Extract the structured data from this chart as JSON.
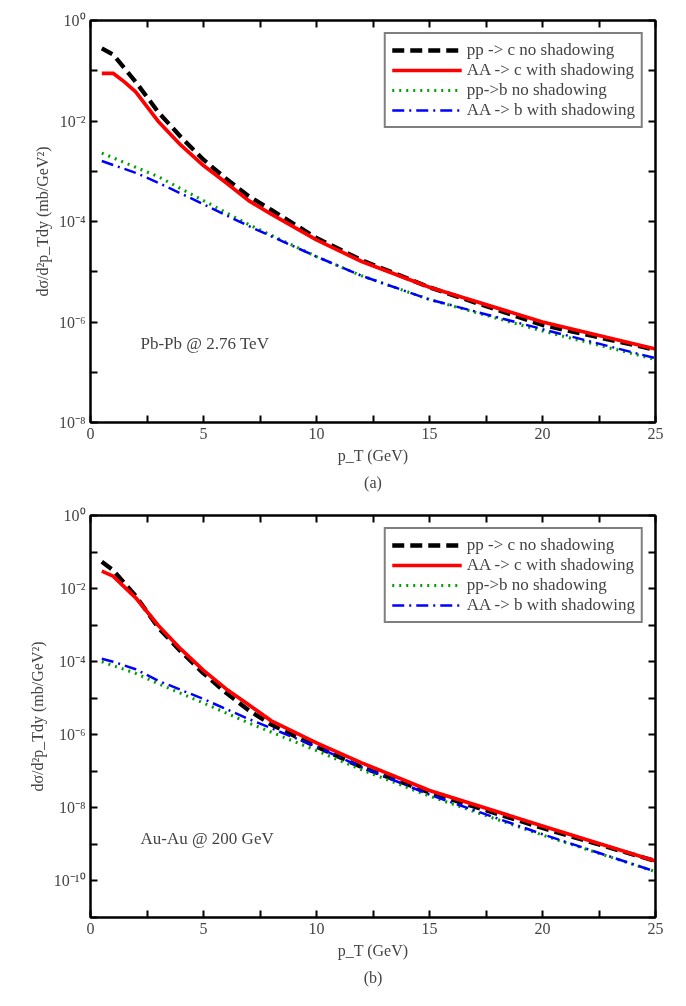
{
  "chart_data": [
    {
      "type": "line",
      "xlabel": "p_T (GeV)",
      "ylabel": "dσ/d²p_Tdy (mb/GeV²)",
      "log": "y",
      "legend": "top right",
      "grid": false,
      "annotations": [
        "Pb-Pb @ 2.76 TeV",
        "(a)"
      ],
      "xlim": [
        0,
        25
      ],
      "xticks": [
        0,
        {
          "value": 2.5,
          "label": null
        },
        5,
        {
          "value": 7.5,
          "label": null
        },
        10,
        {
          "value": 12.5,
          "label": null
        },
        15,
        {
          "value": 17.5,
          "label": null
        },
        20,
        {
          "value": 22.5,
          "label": null
        },
        25
      ],
      "ylim": [
        1e-08,
        1
      ],
      "yticks": [
        {
          "value": 1e-08,
          "label": "10⁻⁸"
        },
        {
          "value": 1e-07,
          "label": null
        },
        {
          "value": 1e-06,
          "label": "10⁻⁶"
        },
        {
          "value": 1e-05,
          "label": null
        },
        {
          "value": 0.0001,
          "label": "10⁻⁴"
        },
        {
          "value": 0.001,
          "label": null
        },
        {
          "value": 0.01,
          "label": "10⁻²"
        },
        {
          "value": 0.1,
          "label": null
        },
        {
          "value": 1,
          "label": "10⁰"
        }
      ],
      "series": [
        {
          "name": "pp -> c no shadowing",
          "color": "#000000",
          "line_style": "dashed",
          "x": [
            0.5,
            1,
            2,
            3,
            4,
            5,
            6,
            7,
            8,
            10,
            12,
            15,
            20,
            25
          ],
          "values": [
            0.28,
            0.21,
            0.06,
            0.015,
            0.0048,
            0.0017,
            0.00071,
            0.00032,
            0.00017,
            4.7e-05,
            1.7e-05,
            4.9e-06,
            8.7e-07,
            2.8e-07
          ]
        },
        {
          "name": "AA -> c with shadowing",
          "color": "#ff0000",
          "line_style": "solid",
          "x": [
            0.5,
            1,
            1.5,
            2,
            3,
            4,
            5,
            6,
            7,
            8,
            10,
            12,
            15,
            20,
            25
          ],
          "values": [
            0.089,
            0.089,
            0.06,
            0.038,
            0.0098,
            0.0033,
            0.0013,
            0.00059,
            0.00026,
            0.00014,
            4.3e-05,
            1.6e-05,
            4.9e-06,
            1e-06,
            2.9e-07
          ]
        },
        {
          "name": "pp->b no shadowing",
          "color": "#00a000",
          "line_style": "dotted",
          "x": [
            0.5,
            2,
            3,
            5,
            7,
            10,
            12,
            15,
            20,
            25
          ],
          "values": [
            0.0023,
            0.0012,
            0.00078,
            0.00026,
            8.7e-05,
            2e-05,
            8.3e-06,
            2.8e-06,
            6.6e-07,
            1.8e-07
          ]
        },
        {
          "name": "AA -> b with shadowing",
          "color": "#0000ff",
          "line_style": "dashdot",
          "x": [
            0.5,
            2,
            3,
            5,
            7,
            10,
            12,
            15,
            20,
            25
          ],
          "values": [
            0.0016,
            0.00093,
            0.00059,
            0.00022,
            8.1e-05,
            2e-05,
            8.3e-06,
            2.8e-06,
            7.2e-07,
            1.9e-07
          ]
        }
      ]
    },
    {
      "type": "line",
      "xlabel": "p_T (GeV)",
      "ylabel": "dσ/d²p_Tdy (mb/GeV²)",
      "log": "y",
      "legend": "top right",
      "grid": false,
      "annotations": [
        "Au-Au @ 200 GeV",
        "(b)"
      ],
      "xlim": [
        0,
        25
      ],
      "xticks": [
        0,
        {
          "value": 2.5,
          "label": null
        },
        5,
        {
          "value": 7.5,
          "label": null
        },
        10,
        {
          "value": 12.5,
          "label": null
        },
        15,
        {
          "value": 17.5,
          "label": null
        },
        20,
        {
          "value": 22.5,
          "label": null
        },
        25
      ],
      "ylim": [
        1e-11,
        1
      ],
      "yticks": [
        {
          "value": 1e-11,
          "label": null
        },
        {
          "value": 1e-10,
          "label": "10⁻¹⁰"
        },
        {
          "value": 1e-09,
          "label": null
        },
        {
          "value": 1e-08,
          "label": "10⁻⁸"
        },
        {
          "value": 1e-07,
          "label": null
        },
        {
          "value": 1e-06,
          "label": "10⁻⁶"
        },
        {
          "value": 1e-05,
          "label": null
        },
        {
          "value": 0.0001,
          "label": "10⁻⁴"
        },
        {
          "value": 0.001,
          "label": null
        },
        {
          "value": 0.01,
          "label": "10⁻²"
        },
        {
          "value": 0.1,
          "label": null
        },
        {
          "value": 1,
          "label": "10⁰"
        }
      ],
      "series": [
        {
          "name": "pp -> c no shadowing",
          "color": "#000000",
          "line_style": "dashed",
          "x": [
            0.5,
            1,
            2,
            3,
            4,
            5,
            6,
            7,
            8,
            10,
            12,
            15,
            20,
            25
          ],
          "values": [
            0.054,
            0.032,
            0.0063,
            0.00085,
            0.00019,
            4.8e-05,
            1.4e-05,
            4.7e-06,
            1.9e-06,
            4.7e-07,
            1.3e-07,
            2.6e-08,
            2.8e-09,
            3.5e-10
          ]
        },
        {
          "name": "AA -> c with shadowing",
          "color": "#ff0000",
          "line_style": "solid",
          "x": [
            0.5,
            1,
            2,
            3,
            4,
            5,
            6,
            7,
            8,
            10,
            12,
            15,
            20,
            25
          ],
          "values": [
            0.03,
            0.022,
            0.0056,
            0.00098,
            0.00022,
            5.8e-05,
            1.8e-05,
            6.6e-06,
            2.4e-06,
            6e-07,
            1.7e-07,
            3e-08,
            3.2e-09,
            3.5e-10
          ]
        },
        {
          "name": "pp->b no shadowing",
          "color": "#00a000",
          "line_style": "dotted",
          "x": [
            0.5,
            2,
            3,
            5,
            7,
            10,
            12,
            15,
            20,
            25
          ],
          "values": [
            0.0001,
            4.8e-05,
            2.5e-05,
            7.4e-06,
            2.1e-06,
            3.7e-07,
            1.1e-07,
            2.1e-08,
            1.8e-09,
            1.8e-10
          ]
        },
        {
          "name": "AA -> b with shadowing",
          "color": "#0000ff",
          "line_style": "dashdot",
          "x": [
            0.5,
            1,
            2,
            3,
            5,
            7,
            10,
            12,
            15,
            20,
            25
          ],
          "values": [
            0.00012,
            0.0001,
            6.2e-05,
            3e-05,
            9.5e-06,
            2.7e-06,
            4.7e-07,
            1.3e-07,
            2.3e-08,
            1.9e-09,
            1.8e-10
          ]
        }
      ]
    }
  ]
}
